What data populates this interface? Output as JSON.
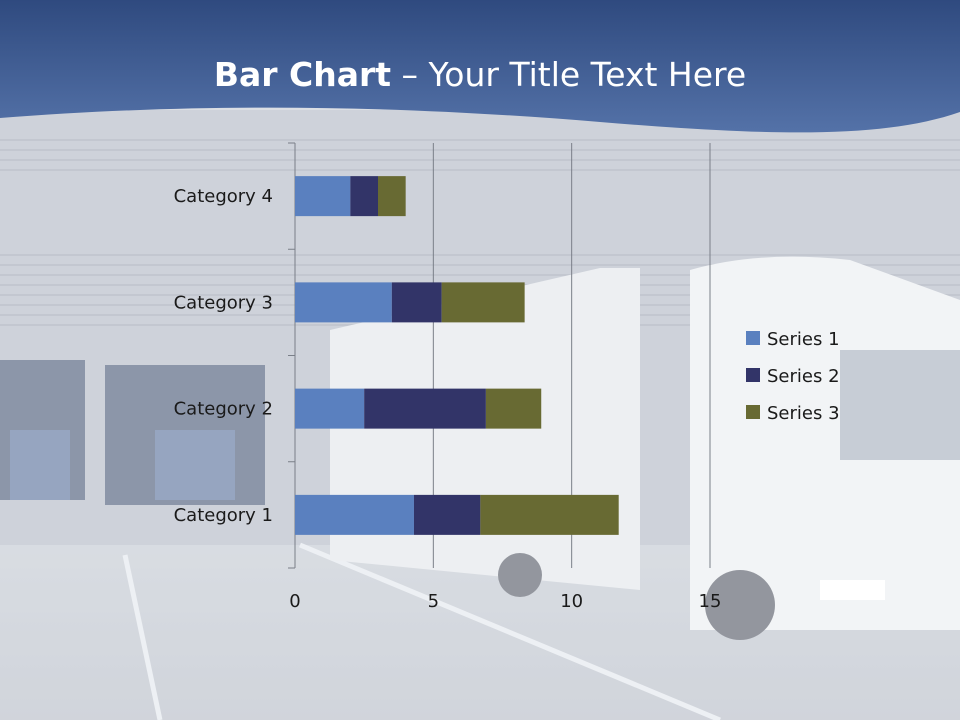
{
  "slide": {
    "title_bold": "Bar Chart",
    "title_rest": " – Your Title Text Here"
  },
  "colors": {
    "series1": "#5a80bf",
    "series2": "#323468",
    "series3": "#686a33",
    "header": "#3c5a94"
  },
  "chart_data": {
    "type": "bar",
    "orientation": "horizontal",
    "stacked": true,
    "categories": [
      "Category 1",
      "Category 2",
      "Category 3",
      "Category 4"
    ],
    "series": [
      {
        "name": "Series 1",
        "values": [
          4.3,
          2.5,
          3.5,
          2.0
        ]
      },
      {
        "name": "Series 2",
        "values": [
          2.4,
          4.4,
          1.8,
          1.0
        ]
      },
      {
        "name": "Series 3",
        "values": [
          5.0,
          2.0,
          3.0,
          1.0
        ]
      }
    ],
    "xlim": [
      0,
      15
    ],
    "x_ticks": [
      "0",
      "5",
      "10",
      "15"
    ],
    "grid": true,
    "legend_position": "right"
  }
}
